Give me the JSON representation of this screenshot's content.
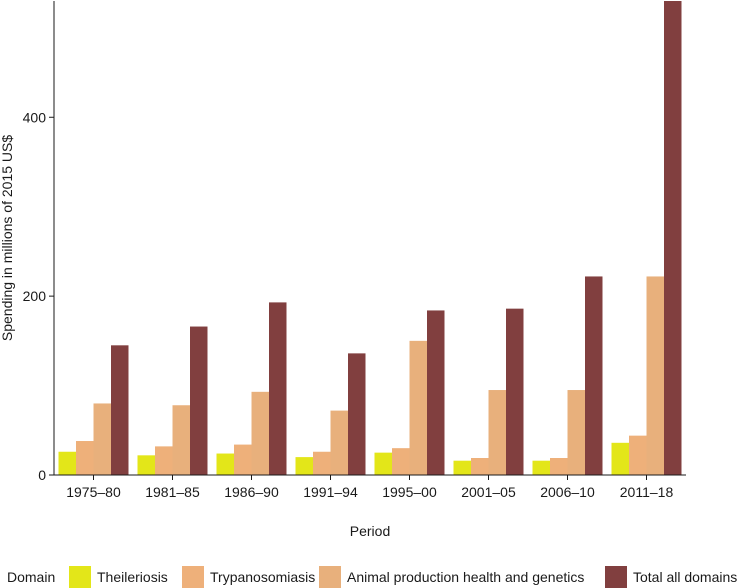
{
  "chart_data": {
    "type": "bar",
    "title": "",
    "xlabel": "Period",
    "ylabel": "Spending in millions of 2015 US$",
    "ylim": [
      0,
      530
    ],
    "yticks": [
      0,
      200,
      400
    ],
    "grid": false,
    "legend_position": "bottom",
    "legend_title": "Domain",
    "categories": [
      "1975–80",
      "1981–85",
      "1986–90",
      "1991–94",
      "1995–00",
      "2001–05",
      "2006–10",
      "2011–18"
    ],
    "series": [
      {
        "name": "Theileriosis",
        "color": "#e3e619",
        "values": [
          26,
          22,
          24,
          20,
          25,
          16,
          16,
          36
        ]
      },
      {
        "name": "Trypanosomiasis",
        "color": "#eeb07a",
        "values": [
          38,
          32,
          34,
          26,
          30,
          19,
          19,
          44
        ]
      },
      {
        "name": "Animal production health and genetics",
        "color": "#e8b07c",
        "values": [
          80,
          78,
          93,
          72,
          150,
          95,
          95,
          222
        ]
      },
      {
        "name": "Total all domains",
        "color": "#813f3f",
        "values": [
          145,
          166,
          193,
          136,
          184,
          186,
          222,
          530
        ]
      }
    ]
  }
}
